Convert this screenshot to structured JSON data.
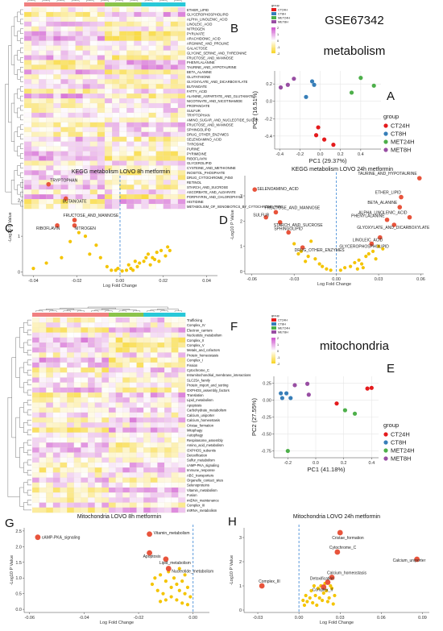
{
  "dataset_title": "GSE67342",
  "panel_letters": [
    "A",
    "B",
    "C",
    "D",
    "E",
    "F",
    "G",
    "H"
  ],
  "section_metabolism": "metabolism",
  "section_mitochondria": "mitochondria",
  "group_legend_title": "group",
  "groups": [
    {
      "name": "CT24H",
      "color": "#e41a1c"
    },
    {
      "name": "CT8H",
      "color": "#377eb8"
    },
    {
      "name": "MET24H",
      "color": "#4daf4a"
    },
    {
      "name": "MET8H",
      "color": "#984ea3"
    }
  ],
  "heatmap_group_bar_colors": [
    "#f08080",
    "#f08080",
    "#f08080",
    "#f08080",
    "#f08080",
    "#f08080",
    "#f08080",
    "#f08080",
    "#f08080",
    "#f08080",
    "#f08080",
    "#8bc34a",
    "#8bc34a",
    "#8bc34a",
    "#8bc34a",
    "#8bc34a",
    "#29c8d8",
    "#29c8d8",
    "#29c8d8",
    "#29c8d8",
    "#29c8d8",
    "#29c8d8"
  ],
  "heatmap_scale_ticks": [
    "2",
    "1",
    "0",
    "-1",
    "-2"
  ],
  "heatmap_metabolism_rows": [
    "ETHER_LIPID",
    "GLYCEROPHOSPHOLIPID",
    "ALPHA_LINOLENIC_ACID",
    "LINOLEIC_ACID",
    "NITROGEN",
    "PYRUVATE",
    "ARACHIDONIC_ACID",
    "ARGININE_AND_PROLINE",
    "GALACTOSE",
    "GLYCINE_SERINE_AND_THREONINE",
    "FRUCTOSE_AND_MANNOSE",
    "PHENYLALANINE",
    "TAURINE_AND_HYPOTAURINE",
    "BETA_ALANINE",
    "GLUTATHIONE",
    "GLYOXYLATE_AND_DICARBOXYLATE",
    "BUTANOATE",
    "FATTY_ACID",
    "ALANINE_ASPARTATE_AND_GLUTAMATE",
    "NICOTINATE_AND_NICOTINAMIDE",
    "PROPANOATE",
    "SULFUR",
    "TRYPTOPHAN",
    "AMINO_SUGAR_AND_NUCLEOTIDE_SUGAR",
    "FRUCTOSE_AND_MANNOSE",
    "SPHINGOLIPID",
    "DRUG_OTHER_ENZYMES",
    "SELENOAMINO_ACID",
    "TYROSINE",
    "PURINE",
    "PYRIMIDINE",
    "RIBOFLAVIN",
    "GLYCEROLIPID",
    "CYSTEINE_AND_METHIONINE",
    "INOSITOL_PHOSPHATE",
    "DRUG_CYTOCHROME_P450",
    "RETINOL",
    "STARCH_AND_SUCROSE",
    "ASCORBATE_AND_ALDARATE",
    "PORPHYRIN_AND_CHLOROPHYLL",
    "HISTIDINE",
    "METABOLISM_OF_XENOBIOTICS_BY_CYTOCHROME_P450"
  ],
  "heatmap_mito_rows": [
    "Trafficking",
    "Complex_IV",
    "Electron_carriers",
    "Nucleotide_metabolism",
    "Complex_II",
    "Complex_V",
    "Metals_and_cofactors",
    "Protein_homeostasis",
    "Complex_I",
    "Fission",
    "Cytochrome_C",
    "Intramitochondrial_membrane_interactions",
    "SLC25A_family",
    "Protein_import_and_sorting",
    "OXPHOS_assembly_factors",
    "Translation",
    "Lipid_metabolism",
    "Apoptosis",
    "Carbohydrate_metabolism",
    "Calcium_uniporter",
    "Calcium_homeostasis",
    "Cristae_formation",
    "Mitophagy",
    "Autophagy",
    "Respirasome_assembly",
    "Amino_acid_metabolism",
    "OXPHOS_subunits",
    "Detoxification",
    "Sulfur_metabolism",
    "cAMP-PKA_signaling",
    "Immune_response",
    "ABC_transporters",
    "Organelle_contact_sites",
    "Selenoproteins",
    "Vitamin_metabolism",
    "Fusion",
    "mtDNA_maintenance",
    "Complex_III",
    "mtRNA_metabolism"
  ],
  "pca_metabolism": {
    "xlabel": "PC1 (29.37%)",
    "ylabel": "PC2 (16.51%)",
    "xlim": [
      -0.45,
      0.6
    ],
    "ylim": [
      -0.55,
      0.35
    ],
    "xticks": [
      "-0.4",
      "-0.2",
      "0.0",
      "0.2",
      "0.4"
    ],
    "xtick_vals": [
      -0.4,
      -0.2,
      0.0,
      0.2,
      0.4
    ],
    "yticks": [
      "0.2",
      "0.0",
      "-0.2",
      "-0.4"
    ],
    "ytick_vals": [
      0.2,
      0.0,
      -0.2,
      -0.4
    ],
    "points": [
      {
        "g": "CT24H",
        "x": -0.02,
        "y": -0.3
      },
      {
        "g": "CT24H",
        "x": -0.04,
        "y": -0.39
      },
      {
        "g": "CT24H",
        "x": 0.04,
        "y": -0.44
      },
      {
        "g": "CT24H",
        "x": 0.13,
        "y": -0.5
      },
      {
        "g": "CT8H",
        "x": -0.08,
        "y": 0.23
      },
      {
        "g": "CT8H",
        "x": -0.06,
        "y": 0.19
      },
      {
        "g": "CT8H",
        "x": -0.14,
        "y": 0.05
      },
      {
        "g": "MET24H",
        "x": 0.4,
        "y": 0.27
      },
      {
        "g": "MET24H",
        "x": 0.53,
        "y": 0.18
      },
      {
        "g": "MET24H",
        "x": 0.31,
        "y": 0.1
      },
      {
        "g": "MET8H",
        "x": -0.39,
        "y": 0.16
      },
      {
        "g": "MET8H",
        "x": -0.32,
        "y": 0.19
      },
      {
        "g": "MET8H",
        "x": -0.26,
        "y": 0.26
      }
    ]
  },
  "pca_mito": {
    "xlabel": "PC1 (41.18%)",
    "ylabel": "PC2 (27.55%)",
    "xlim": [
      -0.3,
      0.45
    ],
    "ylim": [
      -0.85,
      0.35
    ],
    "xticks": [
      "-0.2",
      "0.0",
      "0.2",
      "0.4"
    ],
    "xtick_vals": [
      -0.2,
      0.0,
      0.2,
      0.4
    ],
    "yticks": [
      "0.25",
      "0.00",
      "-0.25",
      "-0.50",
      "-0.75"
    ],
    "ytick_vals": [
      0.25,
      0.0,
      -0.25,
      -0.5,
      -0.75
    ],
    "points": [
      {
        "g": "CT24H",
        "x": 0.4,
        "y": 0.18
      },
      {
        "g": "CT24H",
        "x": 0.37,
        "y": 0.17
      },
      {
        "g": "CT24H",
        "x": 0.15,
        "y": -0.05
      },
      {
        "g": "CT8H",
        "x": -0.25,
        "y": 0.1
      },
      {
        "g": "CT8H",
        "x": -0.21,
        "y": 0.1
      },
      {
        "g": "CT8H",
        "x": -0.24,
        "y": 0.03
      },
      {
        "g": "CT8H",
        "x": -0.18,
        "y": 0.03
      },
      {
        "g": "MET24H",
        "x": 0.21,
        "y": -0.15
      },
      {
        "g": "MET24H",
        "x": 0.28,
        "y": -0.2
      },
      {
        "g": "MET24H",
        "x": -0.2,
        "y": -0.75
      },
      {
        "g": "MET8H",
        "x": -0.06,
        "y": 0.24
      },
      {
        "g": "MET8H",
        "x": -0.15,
        "y": 0.22
      },
      {
        "g": "MET8H",
        "x": -0.05,
        "y": 0.08
      }
    ]
  },
  "volcano_c": {
    "title": "KEGG metabolism LOVO 8h metformin",
    "xlabel": "Log Fold Change",
    "ylabel": "-Log10 P Value",
    "xlim": [
      -0.045,
      0.045
    ],
    "ylim": [
      -0.1,
      2.6
    ],
    "xticks": [
      "-0.04",
      "-0.02",
      "0.00",
      "0.02",
      "0.04"
    ],
    "xtick_vals": [
      -0.04,
      -0.02,
      0,
      0.02,
      0.04
    ],
    "yticks": [
      "0",
      "1",
      "2"
    ],
    "ytick_vals": [
      0,
      1,
      2
    ],
    "sig": [
      {
        "x": -0.033,
        "y": 2.45,
        "label": "TRYPTOPHAN"
      },
      {
        "x": -0.025,
        "y": 2.05,
        "label": "BUTANOATE"
      },
      {
        "x": -0.021,
        "y": 1.45,
        "label": "FRUCTOSE_AND_MANNOSE"
      },
      {
        "x": -0.029,
        "y": 1.3,
        "label": "RIBOFLAVIN"
      },
      {
        "x": -0.021,
        "y": 1.3,
        "label": "NITROGEN"
      }
    ],
    "pts": [
      [
        -0.04,
        0.1
      ],
      [
        -0.034,
        0.25
      ],
      [
        -0.027,
        0.4
      ],
      [
        -0.023,
        0.85
      ],
      [
        -0.019,
        1.1
      ],
      [
        -0.016,
        1.0
      ],
      [
        -0.014,
        0.5
      ],
      [
        -0.011,
        0.75
      ],
      [
        -0.009,
        0.4
      ],
      [
        -0.006,
        0.15
      ],
      [
        -0.004,
        0.05
      ],
      [
        -0.002,
        0.05
      ],
      [
        0.001,
        0.03
      ],
      [
        0.003,
        0.05
      ],
      [
        0.005,
        0.1
      ],
      [
        0.006,
        0.05
      ],
      [
        0.008,
        0.15
      ],
      [
        0.009,
        0.25
      ],
      [
        0.011,
        0.3
      ],
      [
        0.012,
        0.4
      ],
      [
        0.014,
        0.2
      ],
      [
        0.016,
        0.35
      ],
      [
        0.017,
        0.55
      ],
      [
        0.019,
        0.6
      ],
      [
        0.021,
        0.45
      ],
      [
        0.022,
        0.7
      ],
      [
        0.023,
        0.6
      ],
      [
        0.013,
        0.5
      ],
      [
        0.015,
        0.4
      ],
      [
        0.018,
        0.3
      ],
      [
        -0.001,
        0.1
      ],
      [
        0.007,
        0.3
      ],
      [
        0.004,
        0.2
      ]
    ]
  },
  "volcano_d": {
    "title": "KEGG metabolism LOVO 24h metformin",
    "xlabel": "Log Fold Change",
    "ylabel": "-Log10 P Value",
    "xlim": [
      -0.065,
      0.062
    ],
    "ylim": [
      -0.1,
      3.8
    ],
    "xticks": [
      "-0.06",
      "-0.03",
      "0.00",
      "0.03",
      "0.06"
    ],
    "xtick_vals": [
      -0.06,
      -0.03,
      0,
      0.03,
      0.06
    ],
    "yticks": [
      "0",
      "1",
      "2",
      "3"
    ],
    "ytick_vals": [
      0,
      1,
      2,
      3
    ],
    "sig": [
      {
        "x": -0.058,
        "y": 3.25,
        "label": "SELENOAMINO_ACID"
      },
      {
        "x": 0.059,
        "y": 3.7,
        "label": "TAURINE_AND_HYPOTAURINE"
      },
      {
        "x": 0.046,
        "y": 2.95,
        "label": "ETHER_LIPID"
      },
      {
        "x": 0.045,
        "y": 2.55,
        "label": "BETA_ALANINE"
      },
      {
        "x": 0.052,
        "y": 2.15,
        "label": "ALPHA_LINOLENIC_ACID"
      },
      {
        "x": 0.036,
        "y": 2.05,
        "label": "PHENYLALANINE"
      },
      {
        "x": -0.043,
        "y": 2.35,
        "label": "FRUCTOSE_AND_MANNOSE"
      },
      {
        "x": -0.05,
        "y": 2.15,
        "label": "SULFUR"
      },
      {
        "x": -0.04,
        "y": 1.95,
        "label": "STARCH_AND_SUCROSE"
      },
      {
        "x": 0.041,
        "y": 1.85,
        "label": "GLYOXYLATE_AND_DICARBOXYLATE"
      },
      {
        "x": -0.034,
        "y": 1.55,
        "label": "SPHINGOLIPID"
      },
      {
        "x": 0.031,
        "y": 1.35,
        "label": "LINOLEIC_ACID"
      },
      {
        "x": 0.025,
        "y": 1.1,
        "label": "GLYCEROPHOSPHOLIPID"
      },
      {
        "x": -0.024,
        "y": 0.95,
        "label": "DRUG_OTHER_ENZYMES"
      }
    ],
    "pts": [
      [
        -0.03,
        1.1
      ],
      [
        -0.025,
        0.8
      ],
      [
        -0.02,
        0.6
      ],
      [
        -0.018,
        1.2
      ],
      [
        -0.015,
        0.5
      ],
      [
        -0.012,
        0.3
      ],
      [
        -0.01,
        0.2
      ],
      [
        -0.007,
        0.1
      ],
      [
        -0.004,
        0.05
      ],
      [
        0.003,
        0.05
      ],
      [
        0.006,
        0.15
      ],
      [
        0.01,
        0.2
      ],
      [
        0.013,
        0.35
      ],
      [
        0.016,
        0.45
      ],
      [
        0.018,
        0.3
      ],
      [
        0.021,
        0.6
      ],
      [
        0.023,
        0.7
      ],
      [
        0.026,
        0.8
      ],
      [
        0.028,
        0.5
      ],
      [
        0.03,
        1.0
      ],
      [
        0.033,
        0.9
      ],
      [
        0.019,
        0.15
      ],
      [
        0.015,
        0.1
      ],
      [
        -0.022,
        0.4
      ],
      [
        -0.027,
        0.7
      ]
    ]
  },
  "volcano_g": {
    "title": "Mitochondria LOVO 8h metformin",
    "xlabel": "Log Fold Change",
    "ylabel": "-Log10 P Value",
    "xlim": [
      -0.062,
      0.006
    ],
    "ylim": [
      -0.1,
      2.6
    ],
    "xticks": [
      "-0.06",
      "-0.04",
      "-0.02",
      "0.00"
    ],
    "xtick_vals": [
      -0.06,
      -0.04,
      -0.02,
      0
    ],
    "yticks": [
      "0.0",
      "0.5",
      "1.0",
      "1.5",
      "2.0",
      "2.5"
    ],
    "ytick_vals": [
      0,
      0.5,
      1,
      1.5,
      2,
      2.5
    ],
    "sig": [
      {
        "x": -0.057,
        "y": 2.3,
        "label": "cAMP-PKA_signaling"
      },
      {
        "x": -0.016,
        "y": 2.4,
        "label": "Vitamin_metabolism"
      },
      {
        "x": -0.016,
        "y": 1.8,
        "label": "Apoptosis"
      },
      {
        "x": -0.01,
        "y": 1.6,
        "label": "Lipid_metabolism"
      },
      {
        "x": -0.009,
        "y": 1.3,
        "label": "Nucleotide_metabolism"
      }
    ],
    "pts": [
      [
        -0.012,
        1.1
      ],
      [
        -0.01,
        0.9
      ],
      [
        -0.009,
        1.2
      ],
      [
        -0.008,
        0.7
      ],
      [
        -0.007,
        1.0
      ],
      [
        -0.006,
        0.8
      ],
      [
        -0.005,
        0.6
      ],
      [
        -0.004,
        0.9
      ],
      [
        -0.003,
        0.5
      ],
      [
        -0.002,
        0.7
      ],
      [
        -0.001,
        0.4
      ],
      [
        -0.011,
        0.5
      ],
      [
        -0.013,
        0.6
      ],
      [
        -0.015,
        0.8
      ],
      [
        -0.014,
        1.0
      ],
      [
        -0.006,
        0.3
      ],
      [
        -0.004,
        0.2
      ],
      [
        -0.002,
        0.15
      ],
      [
        -0.008,
        0.4
      ],
      [
        -0.01,
        0.3
      ],
      [
        -0.012,
        0.25
      ],
      [
        -0.003,
        1.1
      ],
      [
        -0.005,
        1.3
      ]
    ]
  },
  "volcano_h": {
    "title": "Mitochondria LOVO 24h metformin",
    "xlabel": "Log Fold Change",
    "ylabel": "-Log10 P Value",
    "xlim": [
      -0.04,
      0.095
    ],
    "ylim": [
      -0.1,
      3.4
    ],
    "xticks": [
      "-0.03",
      "0.00",
      "0.03",
      "0.06",
      "0.09"
    ],
    "xtick_vals": [
      -0.03,
      0,
      0.03,
      0.06,
      0.09
    ],
    "yticks": [
      "0",
      "1",
      "2",
      "3"
    ],
    "ytick_vals": [
      0,
      1,
      2,
      3
    ],
    "sig": [
      {
        "x": 0.03,
        "y": 3.2,
        "label": "Cristae_formation"
      },
      {
        "x": 0.028,
        "y": 2.4,
        "label": "Cytochrome_C"
      },
      {
        "x": 0.086,
        "y": 2.1,
        "label": "Calcium_uniporter"
      },
      {
        "x": 0.024,
        "y": 1.35,
        "label": "Calcium_homeostasis"
      },
      {
        "x": 0.021,
        "y": 1.15,
        "label": "Detoxification"
      },
      {
        "x": -0.027,
        "y": 1.0,
        "label": "Complex_III"
      },
      {
        "x": 0.018,
        "y": 0.95,
        "label": "Complex_II"
      }
    ],
    "pts": [
      [
        0.004,
        0.2
      ],
      [
        0.006,
        0.35
      ],
      [
        0.008,
        0.5
      ],
      [
        0.01,
        0.3
      ],
      [
        0.012,
        0.6
      ],
      [
        0.014,
        0.9
      ],
      [
        0.016,
        1.0
      ],
      [
        0.018,
        0.7
      ],
      [
        0.02,
        0.8
      ],
      [
        0.022,
        0.5
      ],
      [
        0.024,
        0.9
      ],
      [
        0.026,
        0.6
      ],
      [
        0.013,
        0.2
      ],
      [
        0.017,
        0.4
      ],
      [
        0.019,
        1.1
      ],
      [
        0.023,
        1.0
      ],
      [
        0.009,
        0.8
      ],
      [
        0.011,
        1.0
      ],
      [
        0.015,
        0.5
      ],
      [
        0.021,
        0.35
      ],
      [
        0.025,
        0.25
      ],
      [
        0.005,
        0.6
      ],
      [
        0.003,
        0.4
      ]
    ]
  }
}
